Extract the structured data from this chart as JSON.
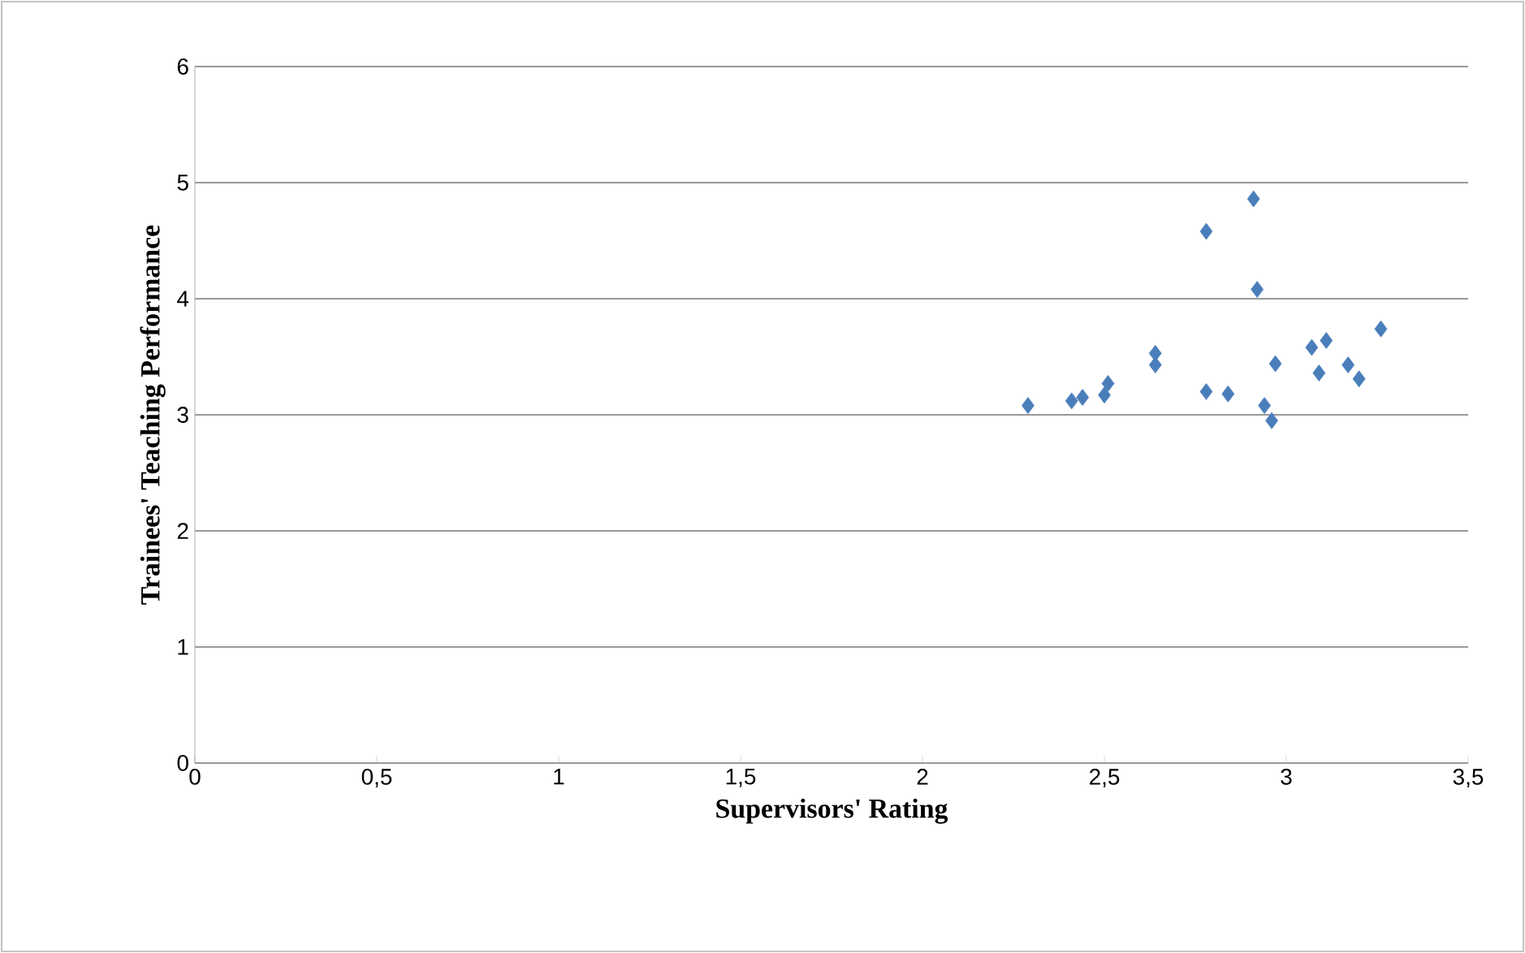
{
  "chart_data": {
    "type": "scatter",
    "xlabel": "Supervisors' Rating",
    "ylabel": "Trainees' Teaching Performance",
    "x": [
      2.29,
      2.41,
      2.44,
      2.5,
      2.51,
      2.64,
      2.64,
      2.78,
      2.78,
      2.84,
      2.91,
      2.92,
      2.94,
      2.96,
      2.97,
      3.07,
      3.09,
      3.11,
      3.17,
      3.2,
      3.26
    ],
    "values": [
      3.08,
      3.12,
      3.15,
      3.17,
      3.27,
      3.53,
      3.43,
      3.2,
      4.58,
      3.18,
      4.86,
      4.08,
      3.08,
      2.95,
      3.44,
      3.58,
      3.36,
      3.64,
      3.43,
      3.31,
      3.74
    ],
    "color": "#4a7ebb",
    "marker": "diamond",
    "grid": "y",
    "xlim": [
      0,
      3.5
    ],
    "ylim": [
      0,
      6
    ],
    "xticks": [
      0,
      {
        "value": 0.5,
        "label": "0,5"
      },
      1,
      {
        "value": 1.5,
        "label": "1,5"
      },
      2,
      {
        "value": 2.5,
        "label": "2,5"
      },
      3,
      {
        "value": 3.5,
        "label": "3,5"
      }
    ],
    "yticks": [
      0,
      1,
      2,
      3,
      4,
      5,
      6
    ]
  }
}
